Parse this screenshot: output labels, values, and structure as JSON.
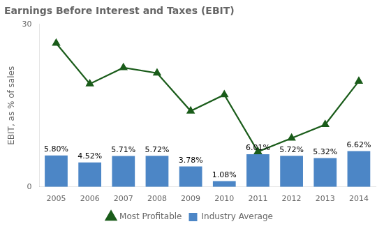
{
  "chart_data": {
    "type": "bar",
    "title": "Earnings Before Interest and Taxes (EBIT)",
    "ylabel": "EBIT, as % of sales",
    "categories": [
      "2005",
      "2006",
      "2007",
      "2008",
      "2009",
      "2010",
      "2011",
      "2012",
      "2013",
      "2014"
    ],
    "series": [
      {
        "name": "Industry Average",
        "type": "bar",
        "color": "#4C86C6",
        "values": [
          5.8,
          4.52,
          5.71,
          5.72,
          3.78,
          1.08,
          6.01,
          5.72,
          5.32,
          6.62
        ],
        "value_labels": [
          "5.80%",
          "4.52%",
          "5.71%",
          "5.72%",
          "3.78%",
          "1.08%",
          "6.01%",
          "5.72%",
          "5.32%",
          "6.62%"
        ]
      },
      {
        "name": "Most Profitable",
        "type": "line",
        "color": "#1A5C1A",
        "marker": "triangle",
        "values": [
          26.5,
          19.0,
          22.0,
          21.0,
          14.0,
          17.0,
          6.5,
          9.0,
          11.5,
          19.5
        ]
      }
    ],
    "ylim": [
      0,
      30
    ],
    "yticks": [
      0,
      30
    ],
    "grid": false,
    "legend": "bottom"
  }
}
